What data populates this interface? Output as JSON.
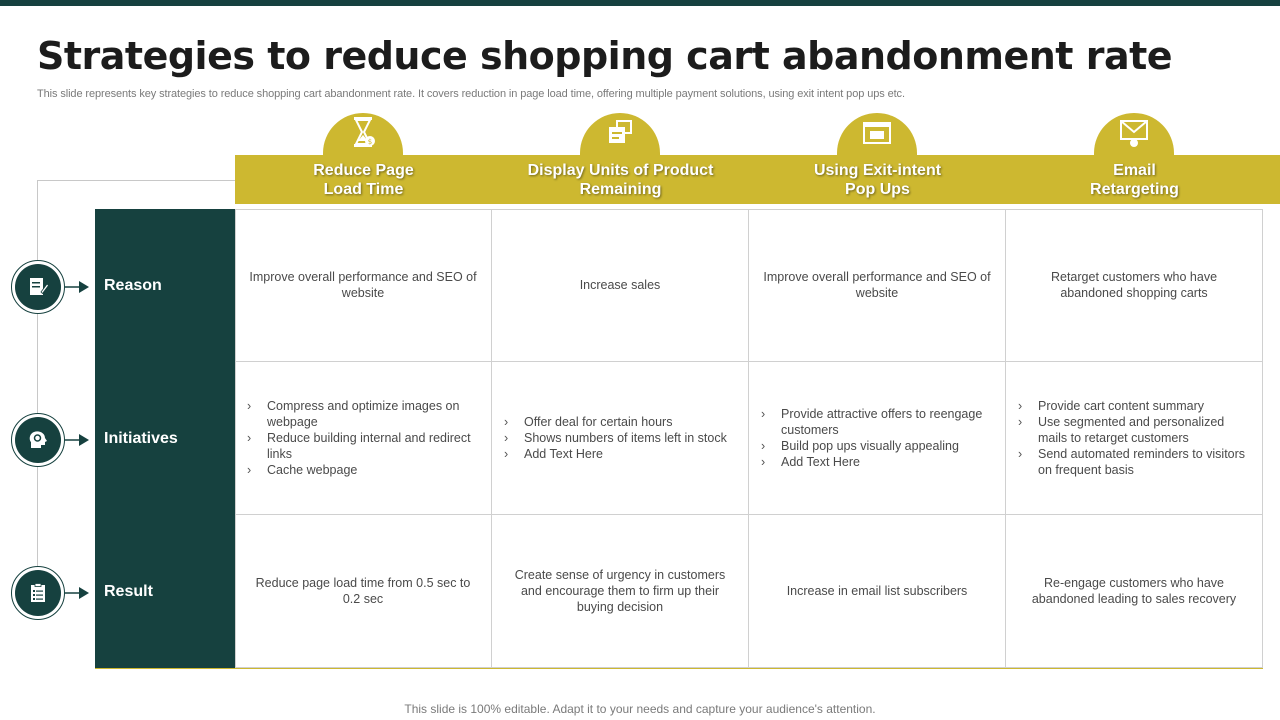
{
  "slide": {
    "title": "Strategies to reduce shopping cart abandonment rate",
    "subtitle": "This slide represents key strategies to reduce shopping cart abandonment rate. It covers reduction in page load time, offering multiple payment solutions, using exit intent pop ups etc.",
    "footer": "This slide is 100% editable. Adapt it to your needs and capture your audience's attention."
  },
  "colors": {
    "accent": "#cdb830",
    "dark": "#16413f"
  },
  "columns": [
    {
      "line1": "Reduce Page",
      "line2": "Load Time",
      "icon": "hourglass-icon"
    },
    {
      "line1": "Display Units of Product",
      "line2": "Remaining",
      "icon": "boxes-icon"
    },
    {
      "line1": "Using Exit-intent",
      "line2": "Pop Ups",
      "icon": "browser-window-icon"
    },
    {
      "line1": "Email",
      "line2": "Retargeting",
      "icon": "envelope-icon"
    }
  ],
  "rows": [
    {
      "label": "Reason",
      "icon": "document-pen-icon"
    },
    {
      "label": "Initiatives",
      "icon": "head-gear-icon"
    },
    {
      "label": "Result",
      "icon": "clipboard-icon"
    }
  ],
  "cells": {
    "reason": [
      "Improve  overall performance  and SEO of website",
      "Increase sales",
      "Improve  overall performance  and SEO of website",
      "Retarget customers who have abandoned  shopping carts"
    ],
    "initiatives": [
      [
        "Compress and optimize images on webpage",
        "Reduce building internal and redirect links",
        "Cache webpage"
      ],
      [
        "Offer deal for certain hours",
        "Shows numbers  of items left  in stock",
        "Add Text Here"
      ],
      [
        "Provide  attractive offers to reengage customers",
        "Build pop ups visually appealing",
        "Add Text Here"
      ],
      [
        "Provide  cart content summary",
        "Use segmented and personalized mails to retarget  customers",
        "Send automated reminders to visitors on frequent  basis"
      ]
    ],
    "result": [
      "Reduce page load time from 0.5 sec to 0.2 sec",
      "Create sense of urgency in customers and encourage them to firm up their buying decision",
      "Increase in email list subscribers",
      "Re-engage  customers who have abandoned  leading to sales recovery"
    ]
  }
}
